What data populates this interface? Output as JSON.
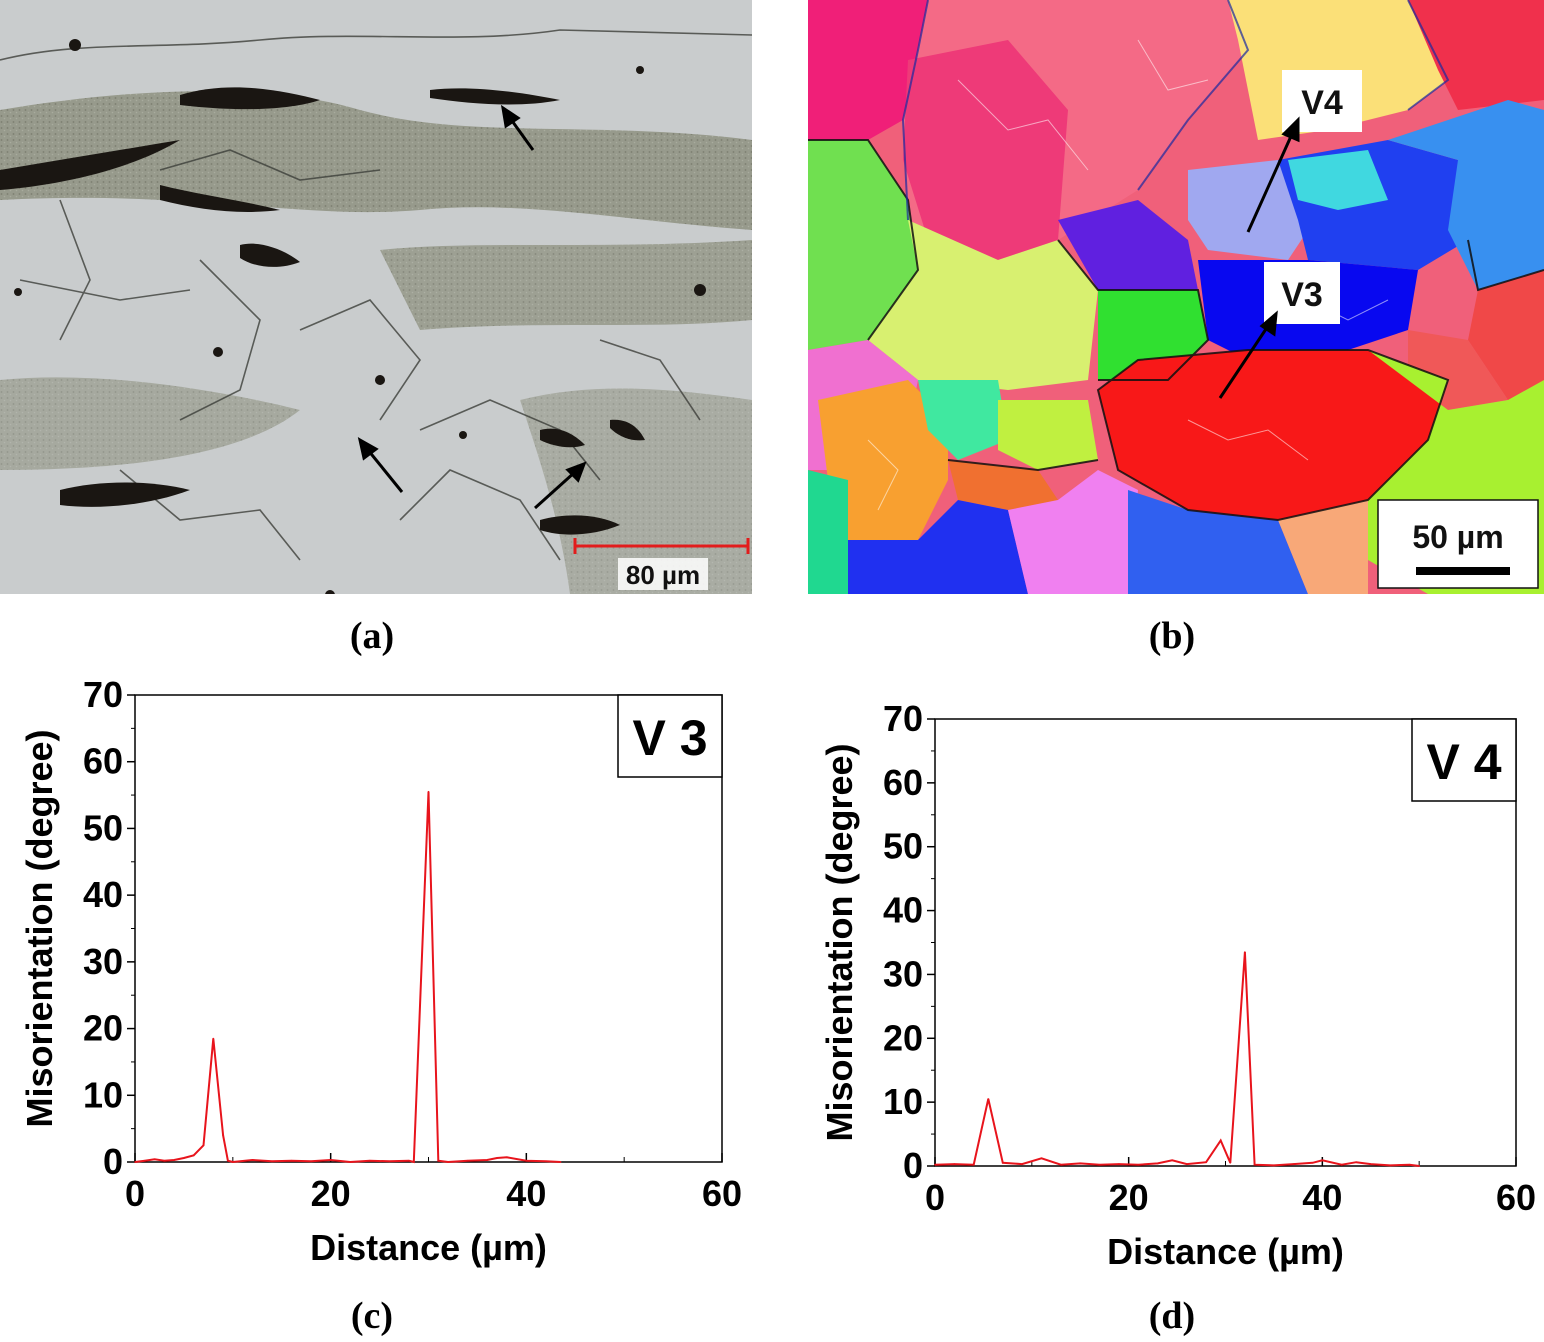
{
  "panels": {
    "a": {
      "caption": "(a)",
      "scale_bar": "80 µm"
    },
    "b": {
      "caption": "(b)",
      "scale_bar": "50 µm",
      "labels": [
        "V4",
        "V3"
      ]
    },
    "c": {
      "caption": "(c)"
    },
    "d": {
      "caption": "(d)"
    }
  },
  "chart_data": [
    {
      "type": "line",
      "inset_label": "V 3",
      "xlabel": "Distance (µm)",
      "ylabel": "Misorientation (degree)",
      "xlim": [
        0,
        60
      ],
      "ylim": [
        0,
        70
      ],
      "xticks": [
        0,
        20,
        40,
        60
      ],
      "yticks": [
        0,
        10,
        20,
        30,
        40,
        50,
        60,
        70
      ],
      "color": "#e8141c",
      "x": [
        0,
        1,
        2,
        3,
        4,
        5,
        6,
        7,
        8,
        9,
        9.5,
        10,
        12,
        14,
        16,
        18,
        20,
        22,
        24,
        26,
        28,
        28.5,
        30,
        31,
        32,
        34,
        36,
        37,
        38,
        40,
        42,
        43.5
      ],
      "y": [
        0,
        0.2,
        0.4,
        0.2,
        0.3,
        0.6,
        1,
        2.5,
        18.5,
        4,
        0.2,
        0,
        0.3,
        0.1,
        0.2,
        0.1,
        0.3,
        0,
        0.2,
        0.1,
        0.2,
        0,
        55.5,
        0.2,
        0,
        0.2,
        0.3,
        0.6,
        0.7,
        0.2,
        0.1,
        0
      ]
    },
    {
      "type": "line",
      "inset_label": "V 4",
      "xlabel": "Distance (µm)",
      "ylabel": "Misorientation (degree)",
      "xlim": [
        0,
        60
      ],
      "ylim": [
        0,
        70
      ],
      "xticks": [
        0,
        20,
        40,
        60
      ],
      "yticks": [
        0,
        10,
        20,
        30,
        40,
        50,
        60,
        70
      ],
      "color": "#e8141c",
      "x": [
        0,
        2,
        4,
        5.5,
        7,
        9,
        11,
        13,
        15,
        17,
        19,
        21,
        23,
        24.5,
        26,
        28,
        29.5,
        30.5,
        32,
        33,
        35,
        37,
        39,
        40,
        42,
        43.5,
        45,
        47,
        49,
        50
      ],
      "y": [
        0.2,
        0.3,
        0.2,
        10.5,
        0.5,
        0.3,
        1.2,
        0.2,
        0.4,
        0.2,
        0.3,
        0.2,
        0.4,
        0.9,
        0.3,
        0.6,
        4,
        0.5,
        33.5,
        0.2,
        0.1,
        0.3,
        0.5,
        0.9,
        0.2,
        0.6,
        0.3,
        0.1,
        0.2,
        0
      ]
    }
  ]
}
